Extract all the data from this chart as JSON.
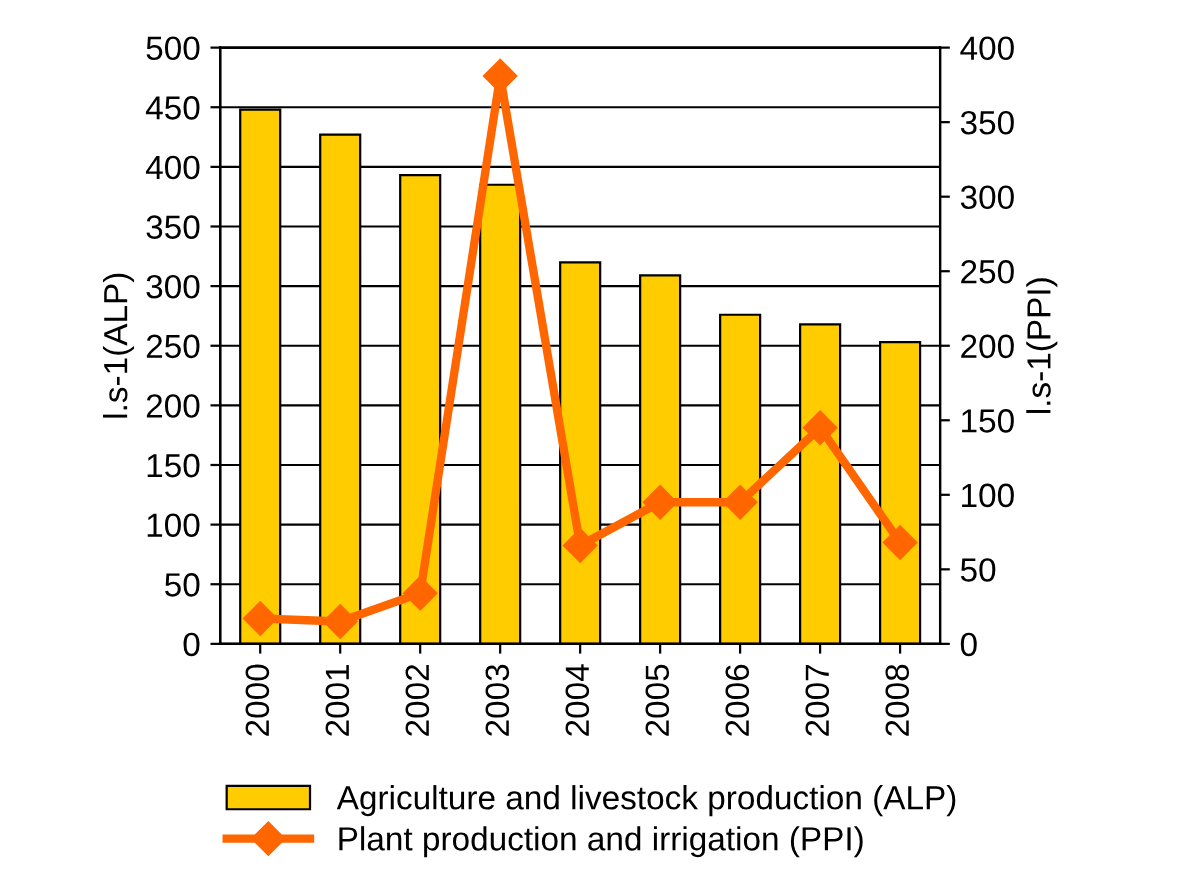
{
  "chart_data": {
    "type": "bar",
    "ylabel": "l.s-1(ALP)",
    "y2label": "l.s-1(PPI)",
    "categories": [
      "2000",
      "2001",
      "2002",
      "2003",
      "2004",
      "2005",
      "2006",
      "2007",
      "2008"
    ],
    "series": [
      {
        "name": "Agriculture and livestock production (ALP)",
        "color": "#ffcc00",
        "values": [
          448,
          427,
          393,
          385,
          320,
          309,
          276,
          268,
          253
        ]
      },
      {
        "name": "Plant production and irrigation (PPI)",
        "type": "line",
        "axis": "y2",
        "color": "#ff6600",
        "marker": "diamond",
        "values": [
          17,
          15,
          34,
          381,
          66,
          95,
          95,
          145,
          68
        ]
      }
    ],
    "ylim": [
      0,
      500
    ],
    "yticks": [
      0,
      50,
      100,
      150,
      200,
      250,
      300,
      350,
      400,
      450,
      500
    ],
    "y2lim": [
      0,
      400
    ],
    "y2ticks": [
      0,
      50,
      100,
      150,
      200,
      250,
      300,
      350,
      400
    ],
    "grid": "y",
    "legend": "bottom"
  }
}
